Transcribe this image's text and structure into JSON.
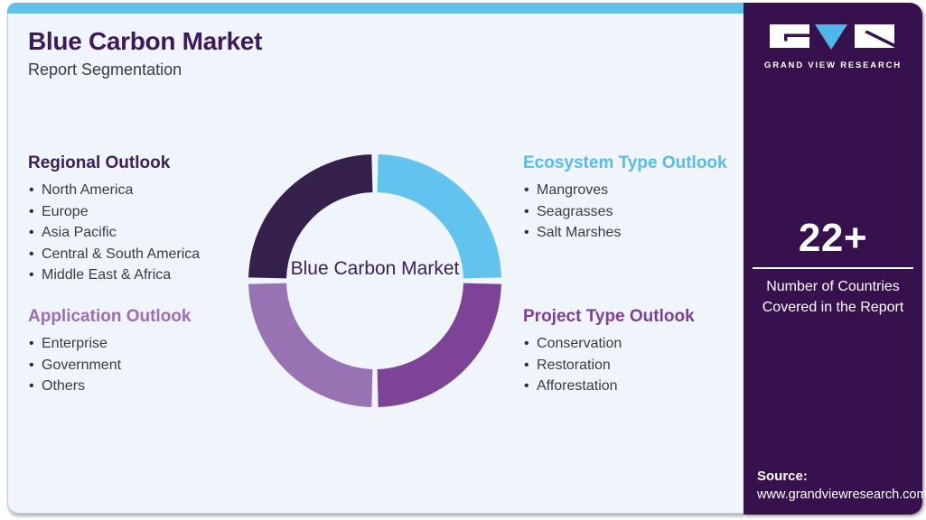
{
  "header": {
    "title": "Blue Carbon Market",
    "subtitle": "Report Segmentation"
  },
  "colors": {
    "top_bar": "#62c1ea",
    "panel_bg": "#eff5fa",
    "sidebar_bg": "#37114d",
    "title_text": "#3d1a5b",
    "body_text": "#3c3c3e"
  },
  "sections": {
    "regional": {
      "title": "Regional Outlook",
      "color": "#3d2058",
      "items": [
        "North America",
        "Europe",
        "Asia Pacific",
        "Central & South America",
        "Middle East & Africa"
      ]
    },
    "ecosystem": {
      "title": "Ecosystem Type Outlook",
      "color": "#55bde9",
      "items": [
        "Mangroves",
        "Seagrasses",
        "Salt Marshes"
      ]
    },
    "application": {
      "title": "Application Outlook",
      "color": "#9a6fb5",
      "items": [
        "Enterprise",
        "Government",
        "Others"
      ]
    },
    "project": {
      "title": "Project Type Outlook",
      "color": "#7d3f98",
      "items": [
        "Conservation",
        "Restoration",
        "Afforestation"
      ]
    }
  },
  "chart_data": {
    "type": "pie",
    "subtype": "donut",
    "center_label": "Blue Carbon Market",
    "legend_position": "none",
    "segments": [
      {
        "key": "ecosystem",
        "name": "Ecosystem Type Outlook",
        "value": 25,
        "color": "#62c3ee",
        "position": "top-right"
      },
      {
        "key": "project",
        "name": "Project Type Outlook",
        "value": 25,
        "color": "#7d4397",
        "position": "bottom-right"
      },
      {
        "key": "application",
        "name": "Application Outlook",
        "value": 25,
        "color": "#9873b4",
        "position": "bottom-left"
      },
      {
        "key": "regional",
        "name": "Regional Outlook",
        "value": 25,
        "color": "#35204b",
        "position": "top-left"
      }
    ]
  },
  "sidebar": {
    "logo_wordmark": "GRAND VIEW RESEARCH",
    "stat_value": "22+",
    "stat_label": "Number of Countries Covered in the Report",
    "source_label": "Source:",
    "source_url": "www.grandviewresearch.com"
  }
}
